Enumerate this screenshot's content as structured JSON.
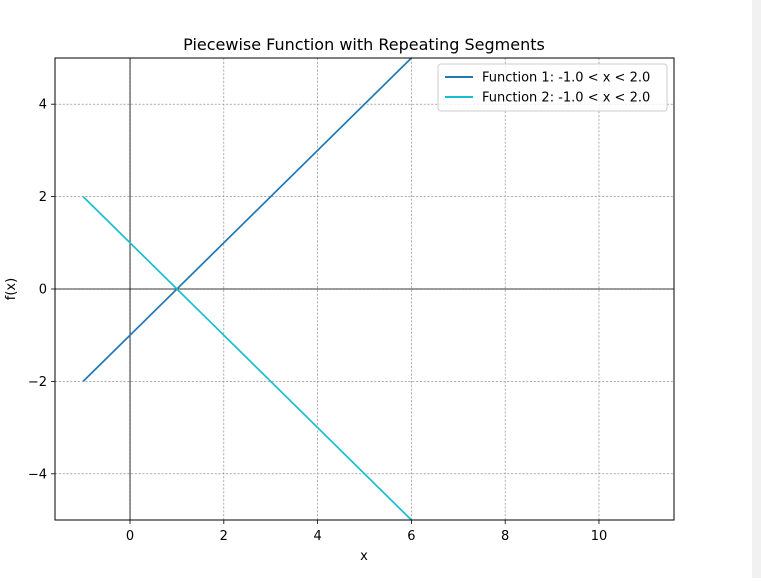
{
  "chart_data": {
    "type": "line",
    "title": "Piecewise Function with Repeating Segments",
    "xlabel": "x",
    "ylabel": "f(x)",
    "xlim": [
      -1.6,
      11.6
    ],
    "ylim": [
      -5,
      5
    ],
    "x_ticks": [
      0,
      2,
      4,
      6,
      8,
      10
    ],
    "y_ticks": [
      -4,
      -2,
      0,
      2,
      4
    ],
    "x_tick_labels": [
      "0",
      "2",
      "4",
      "6",
      "8",
      "10"
    ],
    "y_tick_labels": [
      "−4",
      "−2",
      "0",
      "2",
      "4"
    ],
    "grid": true,
    "legend_position": "top-right",
    "series": [
      {
        "name": "Function 1: -1.0 < x < 2.0",
        "color": "#1f77b4",
        "x": [
          -1,
          6
        ],
        "y": [
          -2,
          5
        ]
      },
      {
        "name": "Function 2: -1.0 < x < 2.0",
        "color": "#17becf",
        "x": [
          -1,
          6
        ],
        "y": [
          2,
          -5
        ]
      }
    ]
  }
}
